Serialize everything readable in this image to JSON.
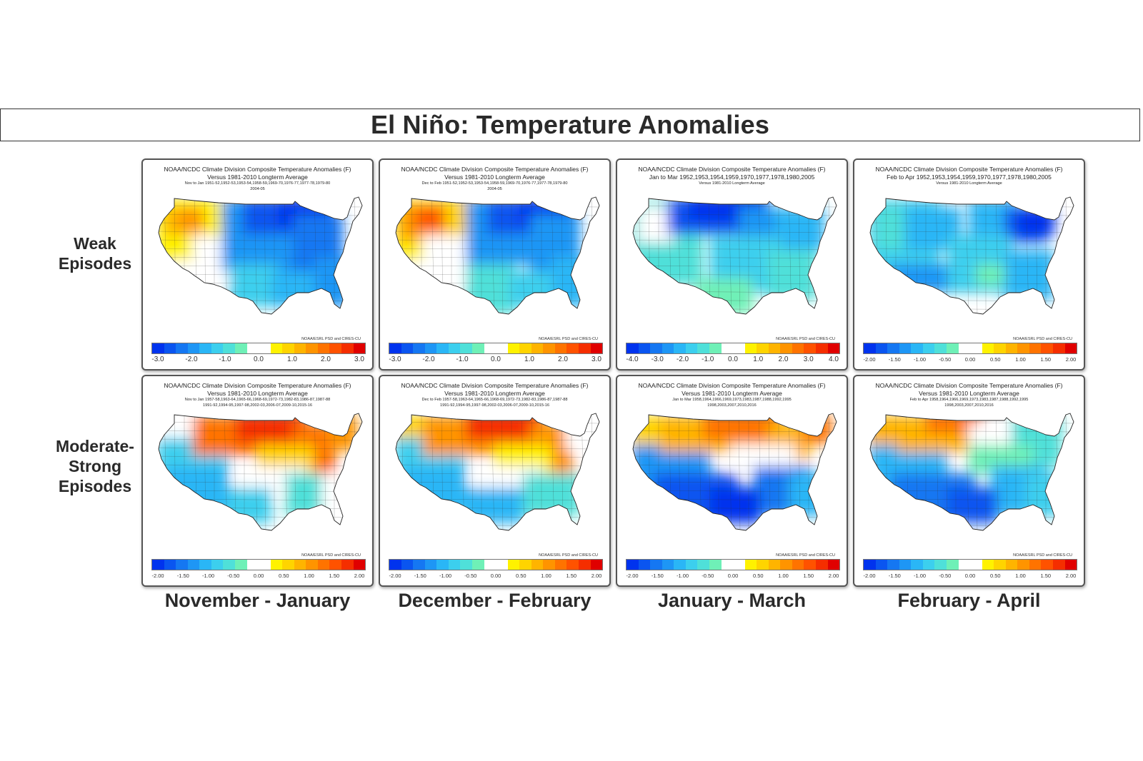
{
  "title": "El Niño: Temperature Anomalies",
  "row_labels": [
    [
      "Weak",
      "Episodes"
    ],
    [
      "Moderate-",
      "Strong",
      "Episodes"
    ]
  ],
  "season_labels": [
    "November - January",
    "December - February",
    "January - March",
    "February - April"
  ],
  "credit": "NOAA/ESRL PSD and CIRES-CU",
  "panels": [
    {
      "lines": [
        "NOAA/NCDC Climate Division Composite Temperature Anomalies (F)",
        "Versus 1981-2010 Longterm Average",
        "Nov to Jan   1951-52,1952-53,1953-54,1958-59,1969-70,1976-77,1977-78,1979-80",
        "2004-05"
      ],
      "ticks": [
        "-3.0",
        "-2.0",
        "-1.0",
        "0.0",
        "1.0",
        "2.0",
        "3.0"
      ],
      "pattern": "weak_nj"
    },
    {
      "lines": [
        "NOAA/NCDC Climate Division Composite Temperature Anomalies (F)",
        "Versus 1981-2010 Longterm Average",
        "Dec to Feb   1951-52,1952-53,1953-54,1958-59,1969-70,1976-77,1977-78,1979-80",
        "2004-05"
      ],
      "ticks": [
        "-3.0",
        "-2.0",
        "-1.0",
        "0.0",
        "1.0",
        "2.0",
        "3.0"
      ],
      "pattern": "weak_df"
    },
    {
      "lines": [
        "NOAA/NCDC Climate Division Composite Temperature Anomalies (F)",
        "Jan to Mar   1952,1953,1954,1959,1970,1977,1978,1980,2005",
        "Versus 1981-2010 Longterm Average",
        ""
      ],
      "ticks": [
        "-4.0",
        "-3.0",
        "-2.0",
        "-1.0",
        "0.0",
        "1.0",
        "2.0",
        "3.0",
        "4.0"
      ],
      "pattern": "weak_jm"
    },
    {
      "lines": [
        "NOAA/NCDC Climate Division Composite Temperature Anomalies (F)",
        "Feb to Apr   1952,1953,1954,1959,1970,1977,1978,1980,2005",
        "Versus 1981-2010 Longterm Average",
        ""
      ],
      "ticks": [
        "-2.00",
        "-1.50",
        "-1.00",
        "-0.50",
        "0.00",
        "0.50",
        "1.00",
        "1.50",
        "2.00"
      ],
      "pattern": "weak_fa"
    },
    {
      "lines": [
        "NOAA/NCDC Climate Division Composite Temperature Anomalies (F)",
        "Versus 1981-2010 Longterm Average",
        "Nov to Jan   1957-58,1963-64,1965-66,1968-69,1972-73,1982-83,1986-87,1987-88",
        "1991-92,1994-95,1997-98,2002-03,2006-07,2009-10,2015-16"
      ],
      "ticks": [
        "-2.00",
        "-1.50",
        "-1.00",
        "-0.50",
        "0.00",
        "0.50",
        "1.00",
        "1.50",
        "2.00"
      ],
      "pattern": "strong_nj"
    },
    {
      "lines": [
        "NOAA/NCDC Climate Division Composite Temperature Anomalies (F)",
        "Versus 1981-2010 Longterm Average",
        "Dec to Feb   1957-58,1963-64,1965-66,1968-69,1972-73,1982-83,1986-87,1987-88",
        "1991-92,1994-95,1997-98,2002-03,2006-07,2009-10,2015-16"
      ],
      "ticks": [
        "-2.00",
        "-1.50",
        "-1.00",
        "-0.50",
        "0.00",
        "0.50",
        "1.00",
        "1.50",
        "2.00"
      ],
      "pattern": "strong_df"
    },
    {
      "lines": [
        "NOAA/NCDC Climate Division Composite Temperature Anomalies (F)",
        "Versus 1981-2010 Longterm Average",
        "Jan to Mar   1958,1964,1966,1969,1973,1983,1987,1988,1992,1995",
        "1998,2003,2007,2010,2016"
      ],
      "ticks": [
        "-2.00",
        "-1.50",
        "-1.00",
        "-0.50",
        "0.00",
        "0.50",
        "1.00",
        "1.50",
        "2.00"
      ],
      "pattern": "strong_jm"
    },
    {
      "lines": [
        "NOAA/NCDC Climate Division Composite Temperature Anomalies (F)",
        "Versus 1981-2010 Longterm Average",
        "Feb to Apr   1958,1964,1966,1969,1973,1983,1987,1988,1992,1995",
        "1998,2003,2007,2010,2016"
      ],
      "ticks": [
        "-2.00",
        "-1.50",
        "-1.00",
        "-0.50",
        "0.00",
        "0.50",
        "1.00",
        "1.50",
        "2.00"
      ],
      "pattern": "strong_fa"
    }
  ],
  "colors": {
    "cold": [
      "#0033ee",
      "#0a55f0",
      "#1577f2",
      "#1e96f5",
      "#2ab6f6",
      "#3ccfee",
      "#4fe0d9",
      "#6ff0b7"
    ],
    "neutral": "#ffffff",
    "warm": [
      "#fff200",
      "#ffd400",
      "#ffb400",
      "#ff9400",
      "#ff7300",
      "#ff5200",
      "#f52e00",
      "#e00000"
    ]
  }
}
